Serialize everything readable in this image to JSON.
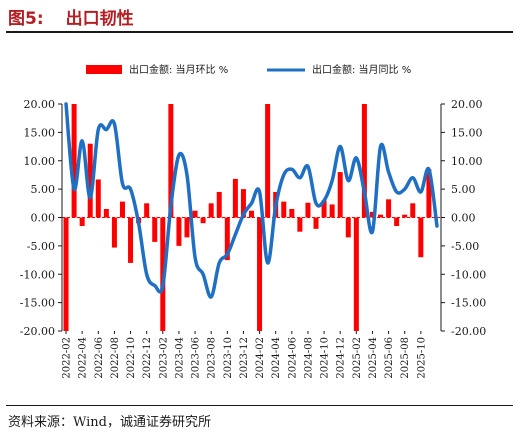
{
  "figure": {
    "label": "图5:",
    "title": "出口韧性",
    "source": "资料来源：Wind，诚通证券研究所"
  },
  "chart_data": {
    "type": "bar+line",
    "title": "出口韧性",
    "grid": false,
    "legend_position": "top",
    "categories": [
      "2022-02",
      "2022-03",
      "2022-04",
      "2022-05",
      "2022-06",
      "2022-07",
      "2022-08",
      "2022-09",
      "2022-10",
      "2022-11",
      "2022-12",
      "2023-01",
      "2023-02",
      "2023-03",
      "2023-04",
      "2023-05",
      "2023-06",
      "2023-07",
      "2023-08",
      "2023-09",
      "2023-10",
      "2023-11",
      "2023-12",
      "2024-01",
      "2024-02",
      "2024-03",
      "2024-04",
      "2024-05",
      "2024-06",
      "2024-07",
      "2024-08",
      "2024-09",
      "2024-10",
      "2024-11",
      "2024-12",
      "2025-01",
      "2025-02",
      "2025-03",
      "2025-04",
      "2025-05",
      "2025-06",
      "2025-07",
      "2025-08",
      "2025-09",
      "2025-10",
      "2025-11",
      "2025-12"
    ],
    "x_tick_labels": [
      "2022-02",
      "2022-04",
      "2022-06",
      "2022-08",
      "2022-10",
      "2022-12",
      "2023-02",
      "2023-04",
      "2023-06",
      "2023-08",
      "2023-10",
      "2023-12",
      "2024-02",
      "2024-04",
      "2024-06",
      "2024-08",
      "2024-10",
      "2024-12",
      "2025-02",
      "2025-04",
      "2025-06",
      "2025-08",
      "2025-10"
    ],
    "y_left": {
      "min": -20,
      "max": 20,
      "step": 5
    },
    "y_right": {
      "min": -20,
      "max": 20,
      "step": 5
    },
    "series": [
      {
        "name": "出口金额: 当月环比  %",
        "kind": "bar",
        "axis": "left",
        "color": "#ff0000",
        "values": [
          -20,
          20,
          -1.5,
          13,
          6.7,
          1.5,
          -5.3,
          2.8,
          -8,
          -1,
          2.5,
          -4.3,
          -20,
          20,
          -5,
          -3.5,
          1.2,
          -1,
          2.5,
          4.5,
          -7.5,
          6.8,
          5,
          1.2,
          -20,
          20,
          4.5,
          2.8,
          1.5,
          -2.5,
          2.6,
          -2,
          3,
          2.3,
          8,
          -3.5,
          -20,
          20,
          1,
          0.5,
          3.2,
          -1.5,
          0.5,
          2.5,
          -7,
          8.5,
          0
        ]
      },
      {
        "name": "出口金额: 当月同比  %",
        "kind": "line",
        "axis": "right",
        "color": "#1f6fc5",
        "values": [
          20,
          5,
          13.5,
          3.5,
          15.5,
          15.5,
          16.5,
          6,
          5,
          -1,
          -10,
          -12,
          -12,
          2,
          11,
          7.5,
          -7,
          -10,
          -14,
          -8,
          -6.5,
          -3,
          0.5,
          2.5,
          4.5,
          -8,
          2,
          7.5,
          8.5,
          7,
          9,
          2.5,
          3,
          6.5,
          12.5,
          6.5,
          10.5,
          4.5,
          -2.5,
          12.5,
          8,
          4.5,
          5,
          7,
          4.5,
          8.5,
          -1.5
        ]
      }
    ]
  }
}
